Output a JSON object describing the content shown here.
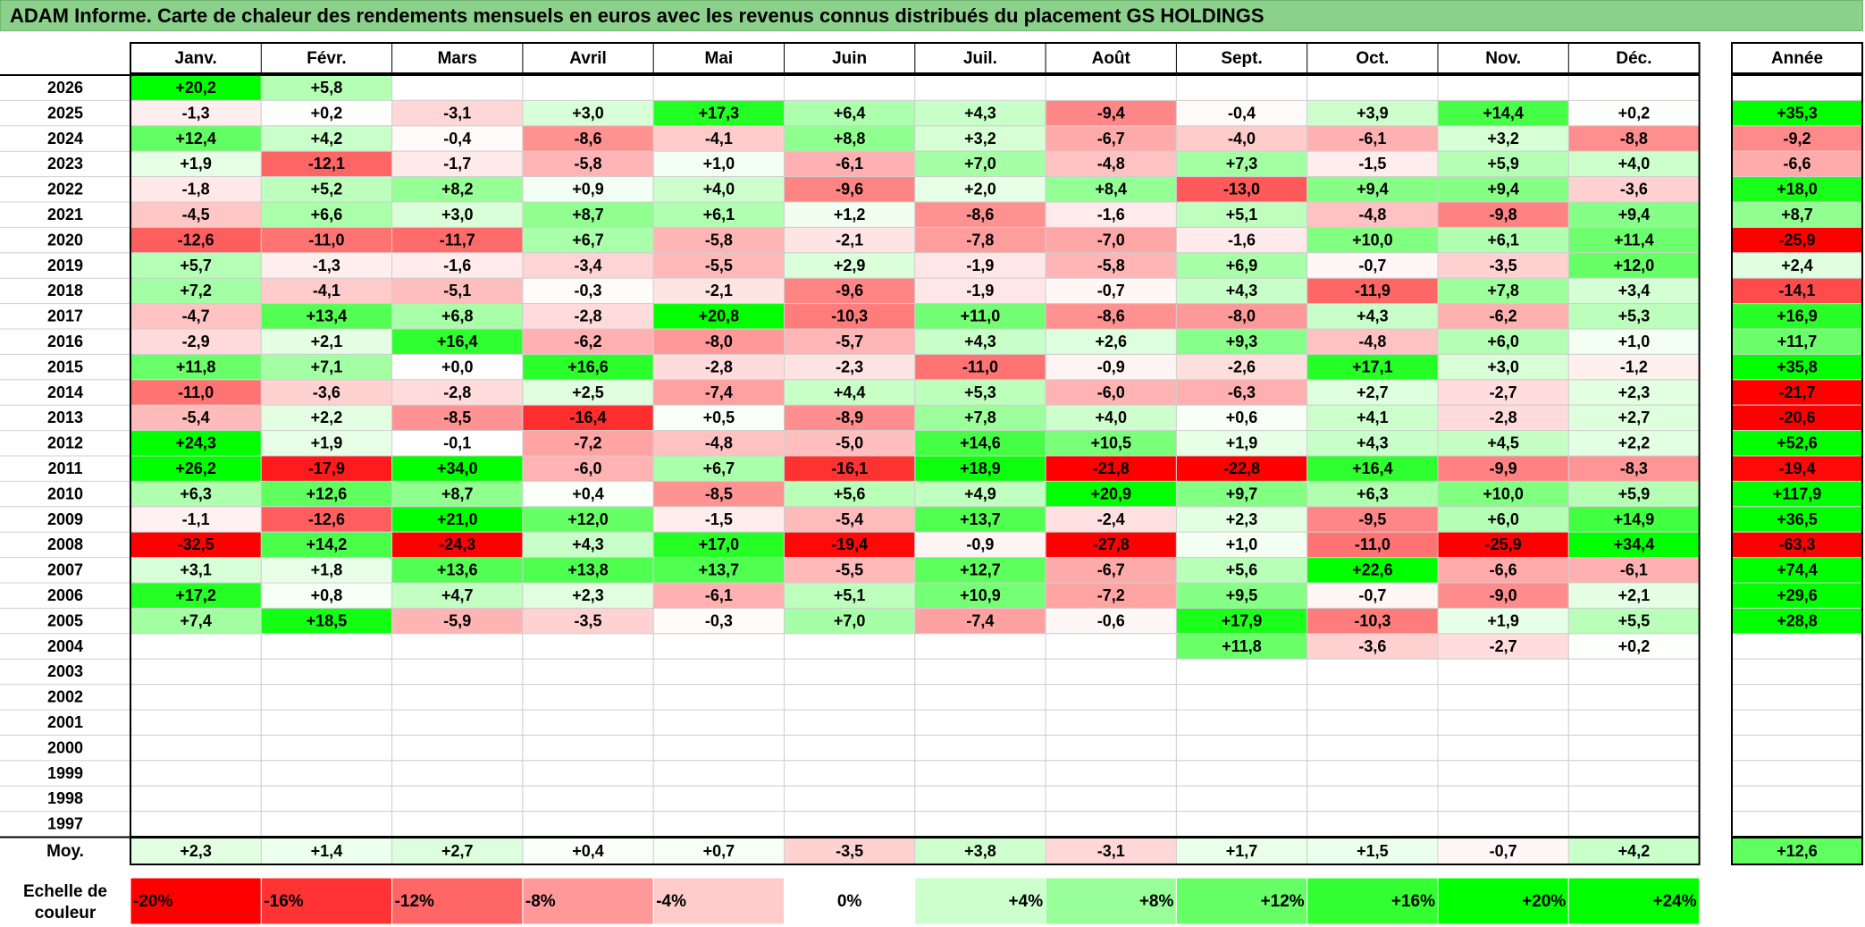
{
  "title": "ADAM Informe. Carte de chaleur des rendements mensuels en euros avec les revenus connus distribués du placement GS HOLDINGS",
  "chart_data": {
    "type": "heatmap",
    "months": [
      "Janv.",
      "Févr.",
      "Mars",
      "Avril",
      "Mai",
      "Juin",
      "Juil.",
      "Août",
      "Sept.",
      "Oct.",
      "Nov.",
      "Déc."
    ],
    "year_header": "Année",
    "rows": [
      {
        "year": "2026",
        "values": [
          "+20,2",
          "+5,8",
          "",
          "",
          "",
          "",
          "",
          "",
          "",
          "",
          "",
          ""
        ],
        "annual": ""
      },
      {
        "year": "2025",
        "values": [
          "-1,3",
          "+0,2",
          "-3,1",
          "+3,0",
          "+17,3",
          "+6,4",
          "+4,3",
          "-9,4",
          "-0,4",
          "+3,9",
          "+14,4",
          "+0,2"
        ],
        "annual": "+35,3"
      },
      {
        "year": "2024",
        "values": [
          "+12,4",
          "+4,2",
          "-0,4",
          "-8,6",
          "-4,1",
          "+8,8",
          "+3,2",
          "-6,7",
          "-4,0",
          "-6,1",
          "+3,2",
          "-8,8"
        ],
        "annual": "-9,2"
      },
      {
        "year": "2023",
        "values": [
          "+1,9",
          "-12,1",
          "-1,7",
          "-5,8",
          "+1,0",
          "-6,1",
          "+7,0",
          "-4,8",
          "+7,3",
          "-1,5",
          "+5,9",
          "+4,0"
        ],
        "annual": "-6,6"
      },
      {
        "year": "2022",
        "values": [
          "-1,8",
          "+5,2",
          "+8,2",
          "+0,9",
          "+4,0",
          "-9,6",
          "+2,0",
          "+8,4",
          "-13,0",
          "+9,4",
          "+9,4",
          "-3,6"
        ],
        "annual": "+18,0"
      },
      {
        "year": "2021",
        "values": [
          "-4,5",
          "+6,6",
          "+3,0",
          "+8,7",
          "+6,1",
          "+1,2",
          "-8,6",
          "-1,6",
          "+5,1",
          "-4,8",
          "-9,8",
          "+9,4"
        ],
        "annual": "+8,7"
      },
      {
        "year": "2020",
        "values": [
          "-12,6",
          "-11,0",
          "-11,7",
          "+6,7",
          "-5,8",
          "-2,1",
          "-7,8",
          "-7,0",
          "-1,6",
          "+10,0",
          "+6,1",
          "+11,4"
        ],
        "annual": "-25,9"
      },
      {
        "year": "2019",
        "values": [
          "+5,7",
          "-1,3",
          "-1,6",
          "-3,4",
          "-5,5",
          "+2,9",
          "-1,9",
          "-5,8",
          "+6,9",
          "-0,7",
          "-3,5",
          "+12,0"
        ],
        "annual": "+2,4"
      },
      {
        "year": "2018",
        "values": [
          "+7,2",
          "-4,1",
          "-5,1",
          "-0,3",
          "-2,1",
          "-9,6",
          "-1,9",
          "-0,7",
          "+4,3",
          "-11,9",
          "+7,8",
          "+3,4"
        ],
        "annual": "-14,1"
      },
      {
        "year": "2017",
        "values": [
          "-4,7",
          "+13,4",
          "+6,8",
          "-2,8",
          "+20,8",
          "-10,3",
          "+11,0",
          "-8,6",
          "-8,0",
          "+4,3",
          "-6,2",
          "+5,3"
        ],
        "annual": "+16,9"
      },
      {
        "year": "2016",
        "values": [
          "-2,9",
          "+2,1",
          "+16,4",
          "-6,2",
          "-8,0",
          "-5,7",
          "+4,3",
          "+2,6",
          "+9,3",
          "-4,8",
          "+6,0",
          "+1,0"
        ],
        "annual": "+11,7"
      },
      {
        "year": "2015",
        "values": [
          "+11,8",
          "+7,1",
          "+0,0",
          "+16,6",
          "-2,8",
          "-2,3",
          "-11,0",
          "-0,9",
          "-2,6",
          "+17,1",
          "+3,0",
          "-1,2"
        ],
        "annual": "+35,8"
      },
      {
        "year": "2014",
        "values": [
          "-11,0",
          "-3,6",
          "-2,8",
          "+2,5",
          "-7,4",
          "+4,4",
          "+5,3",
          "-6,0",
          "-6,3",
          "+2,7",
          "-2,7",
          "+2,3"
        ],
        "annual": "-21,7"
      },
      {
        "year": "2013",
        "values": [
          "-5,4",
          "+2,2",
          "-8,5",
          "-16,4",
          "+0,5",
          "-8,9",
          "+7,8",
          "+4,0",
          "+0,6",
          "+4,1",
          "-2,8",
          "+2,7"
        ],
        "annual": "-20,6"
      },
      {
        "year": "2012",
        "values": [
          "+24,3",
          "+1,9",
          "-0,1",
          "-7,2",
          "-4,8",
          "-5,0",
          "+14,6",
          "+10,5",
          "+1,9",
          "+4,3",
          "+4,5",
          "+2,2"
        ],
        "annual": "+52,6"
      },
      {
        "year": "2011",
        "values": [
          "+26,2",
          "-17,9",
          "+34,0",
          "-6,0",
          "+6,7",
          "-16,1",
          "+18,9",
          "-21,8",
          "-22,8",
          "+16,4",
          "-9,9",
          "-8,3"
        ],
        "annual": "-19,4"
      },
      {
        "year": "2010",
        "values": [
          "+6,3",
          "+12,6",
          "+8,7",
          "+0,4",
          "-8,5",
          "+5,6",
          "+4,9",
          "+20,9",
          "+9,7",
          "+6,3",
          "+10,0",
          "+5,9"
        ],
        "annual": "+117,9"
      },
      {
        "year": "2009",
        "values": [
          "-1,1",
          "-12,6",
          "+21,0",
          "+12,0",
          "-1,5",
          "-5,4",
          "+13,7",
          "-2,4",
          "+2,3",
          "-9,5",
          "+6,0",
          "+14,9"
        ],
        "annual": "+36,5"
      },
      {
        "year": "2008",
        "values": [
          "-32,5",
          "+14,2",
          "-24,3",
          "+4,3",
          "+17,0",
          "-19,4",
          "-0,9",
          "-27,8",
          "+1,0",
          "-11,0",
          "-25,9",
          "+34,4"
        ],
        "annual": "-63,3"
      },
      {
        "year": "2007",
        "values": [
          "+3,1",
          "+1,8",
          "+13,6",
          "+13,8",
          "+13,7",
          "-5,5",
          "+12,7",
          "-6,7",
          "+5,6",
          "+22,6",
          "-6,6",
          "-6,1"
        ],
        "annual": "+74,4"
      },
      {
        "year": "2006",
        "values": [
          "+17,2",
          "+0,8",
          "+4,7",
          "+2,3",
          "-6,1",
          "+5,1",
          "+10,9",
          "-7,2",
          "+9,5",
          "-0,7",
          "-9,0",
          "+2,1"
        ],
        "annual": "+29,6"
      },
      {
        "year": "2005",
        "values": [
          "+7,4",
          "+18,5",
          "-5,9",
          "-3,5",
          "-0,3",
          "+7,0",
          "-7,4",
          "-0,6",
          "+17,9",
          "-10,3",
          "+1,9",
          "+5,5"
        ],
        "annual": "+28,8"
      },
      {
        "year": "2004",
        "values": [
          "",
          "",
          "",
          "",
          "",
          "",
          "",
          "",
          "+11,8",
          "-3,6",
          "-2,7",
          "+0,2"
        ],
        "annual": ""
      },
      {
        "year": "2003",
        "values": [
          "",
          "",
          "",
          "",
          "",
          "",
          "",
          "",
          "",
          "",
          "",
          ""
        ],
        "annual": ""
      },
      {
        "year": "2002",
        "values": [
          "",
          "",
          "",
          "",
          "",
          "",
          "",
          "",
          "",
          "",
          "",
          ""
        ],
        "annual": ""
      },
      {
        "year": "2001",
        "values": [
          "",
          "",
          "",
          "",
          "",
          "",
          "",
          "",
          "",
          "",
          "",
          ""
        ],
        "annual": ""
      },
      {
        "year": "2000",
        "values": [
          "",
          "",
          "",
          "",
          "",
          "",
          "",
          "",
          "",
          "",
          "",
          ""
        ],
        "annual": ""
      },
      {
        "year": "1999",
        "values": [
          "",
          "",
          "",
          "",
          "",
          "",
          "",
          "",
          "",
          "",
          "",
          ""
        ],
        "annual": ""
      },
      {
        "year": "1998",
        "values": [
          "",
          "",
          "",
          "",
          "",
          "",
          "",
          "",
          "",
          "",
          "",
          ""
        ],
        "annual": ""
      },
      {
        "year": "1997",
        "values": [
          "",
          "",
          "",
          "",
          "",
          "",
          "",
          "",
          "",
          "",
          "",
          ""
        ],
        "annual": ""
      }
    ],
    "average": {
      "label": "Moy.",
      "values": [
        "+2,3",
        "+1,4",
        "+2,7",
        "+0,4",
        "+0,7",
        "-3,5",
        "+3,8",
        "-3,1",
        "+1,7",
        "+1,5",
        "-0,7",
        "+4,2"
      ],
      "annual": "+12,6"
    },
    "scale": {
      "label": "Echelle de couleur",
      "steps": [
        "-20%",
        "-16%",
        "-12%",
        "-8%",
        "-4%",
        "0%",
        "+4%",
        "+8%",
        "+12%",
        "+16%",
        "+20%",
        "+24%"
      ],
      "colors": [
        "#ff0000",
        "#ff3333",
        "#ff6666",
        "#ff9999",
        "#ffcccc",
        "#ffffff",
        "#ccffcc",
        "#99ff99",
        "#66ff66",
        "#33ff33",
        "#00ff00",
        "#00ff00"
      ]
    },
    "colors": {
      "negative": "#ff0000",
      "zero": "#ffffff",
      "positive": "#00ff00",
      "title_bg": "#8bd18b"
    }
  }
}
